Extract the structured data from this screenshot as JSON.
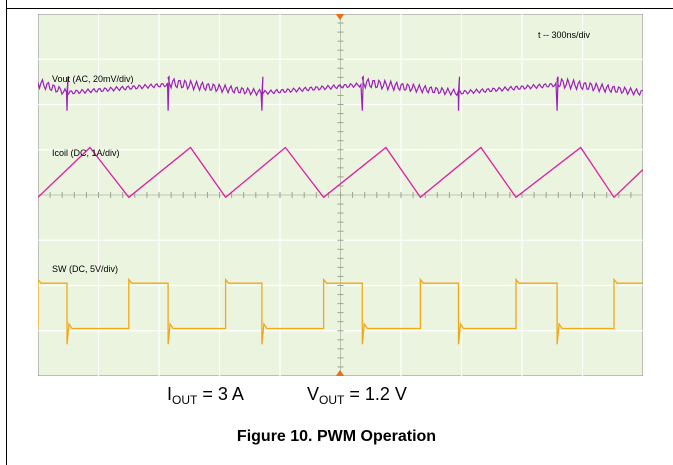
{
  "chart_data": {
    "type": "line",
    "timebase_label": "t -- 300ns/div",
    "x_divisions": 10,
    "y_divisions": 8,
    "time_per_div_ns": 300,
    "grid": true,
    "background_color": "#ebf4df",
    "channels": [
      {
        "name": "Vout (AC, 20mV/div)",
        "color": "#9b1fb8",
        "waveform": "ripple with switching spikes",
        "baseline_div": 1.65,
        "transition_times_div": [
          0.48,
          2.15,
          3.7,
          5.36,
          6.95,
          8.58
        ]
      },
      {
        "name": "Icoil (DC, 1A/div)",
        "color": "#e01fa0",
        "waveform": "triangle",
        "peak_div": 2.95,
        "valley_div": 4.05,
        "peak_times_div": [
          0.86,
          2.52,
          4.09,
          5.75,
          7.32,
          8.97
        ],
        "valley_times_div": [
          0.0,
          1.5,
          3.1,
          4.72,
          6.32,
          7.9,
          9.52
        ]
      },
      {
        "name": "SW (DC, 5V/div)",
        "color": "#f0a818",
        "waveform": "square",
        "high_div": 5.95,
        "low_div": 6.95,
        "rising_edges_div": [
          0.0,
          1.5,
          3.1,
          4.72,
          6.32,
          7.9,
          9.52
        ],
        "falling_edges_div": [
          0.48,
          2.15,
          3.7,
          5.36,
          6.95,
          8.58
        ]
      }
    ]
  },
  "conditions": {
    "iout_symbol": "I",
    "iout_sub": "OUT",
    "iout_value": " = 3 A",
    "vout_symbol": "V",
    "vout_sub": "OUT",
    "vout_value": " = 1.2 V"
  },
  "caption": "Figure 10.  PWM Operation"
}
